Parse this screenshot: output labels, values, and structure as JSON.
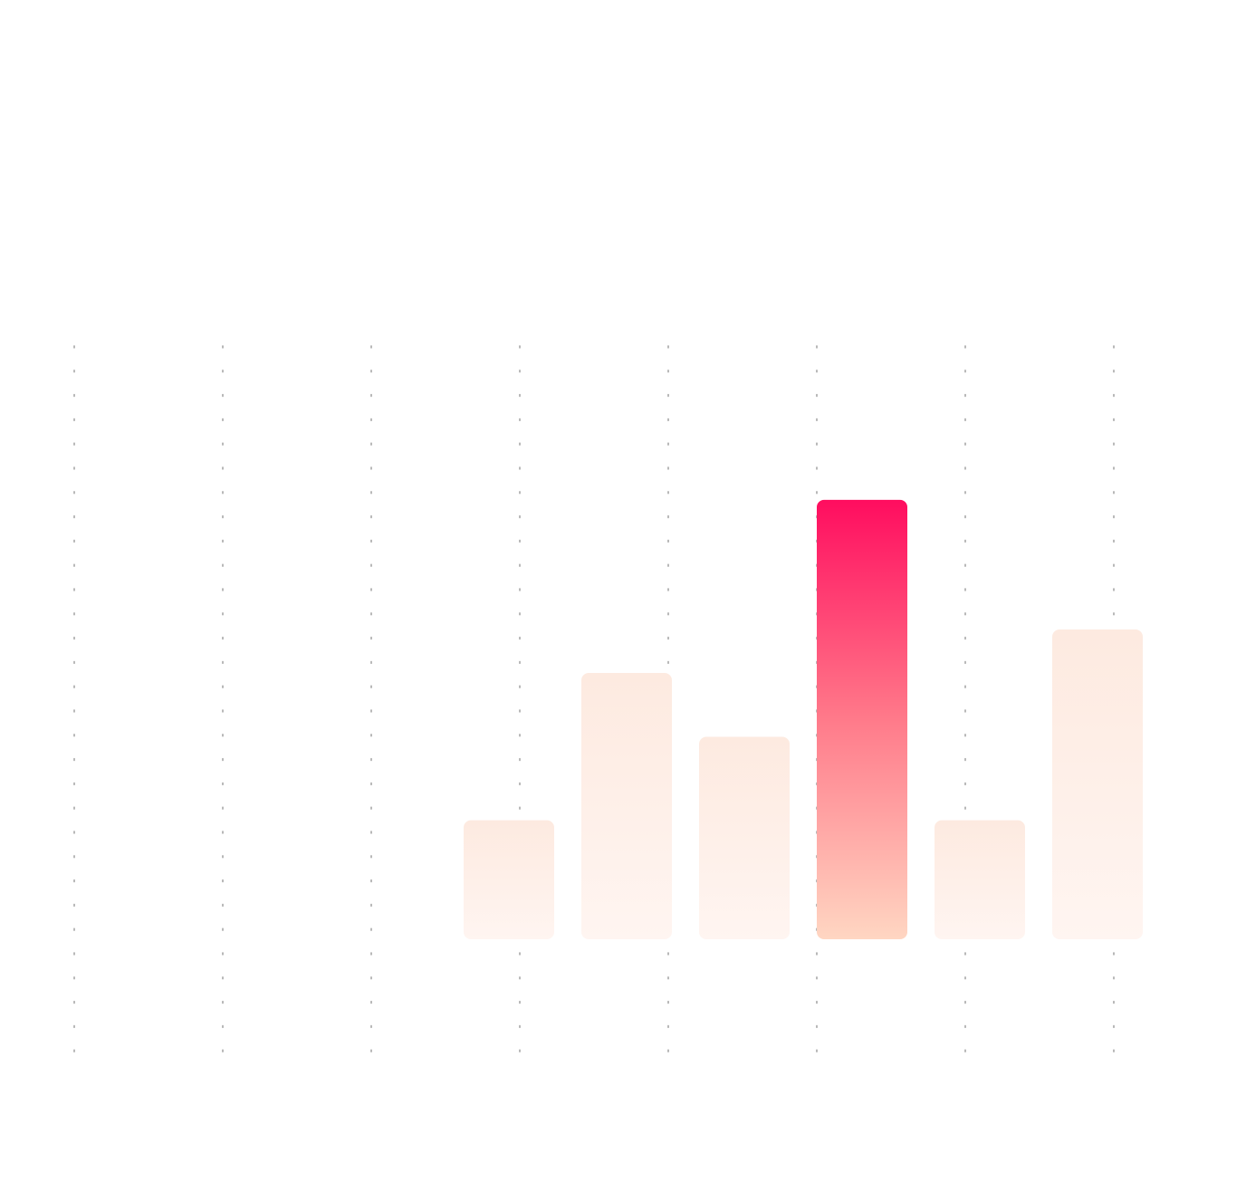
{
  "chart_data": {
    "type": "bar",
    "title": "",
    "xlabel": "",
    "ylabel": "",
    "values": [
      1.34,
      3.0,
      2.28,
      4.95,
      1.34,
      3.49
    ],
    "ylim": [
      0,
      5
    ],
    "highlight_index": 3,
    "grid": "vertical-dotted",
    "colors": {
      "highlight_top": "#ff0d5f",
      "highlight_mid": "#ff7a8a",
      "highlight_bottom": "#ffd6c2",
      "muted_top": "#fdeae0",
      "muted_bottom": "#fff5f1",
      "gridline": "#9a9a9a"
    }
  }
}
